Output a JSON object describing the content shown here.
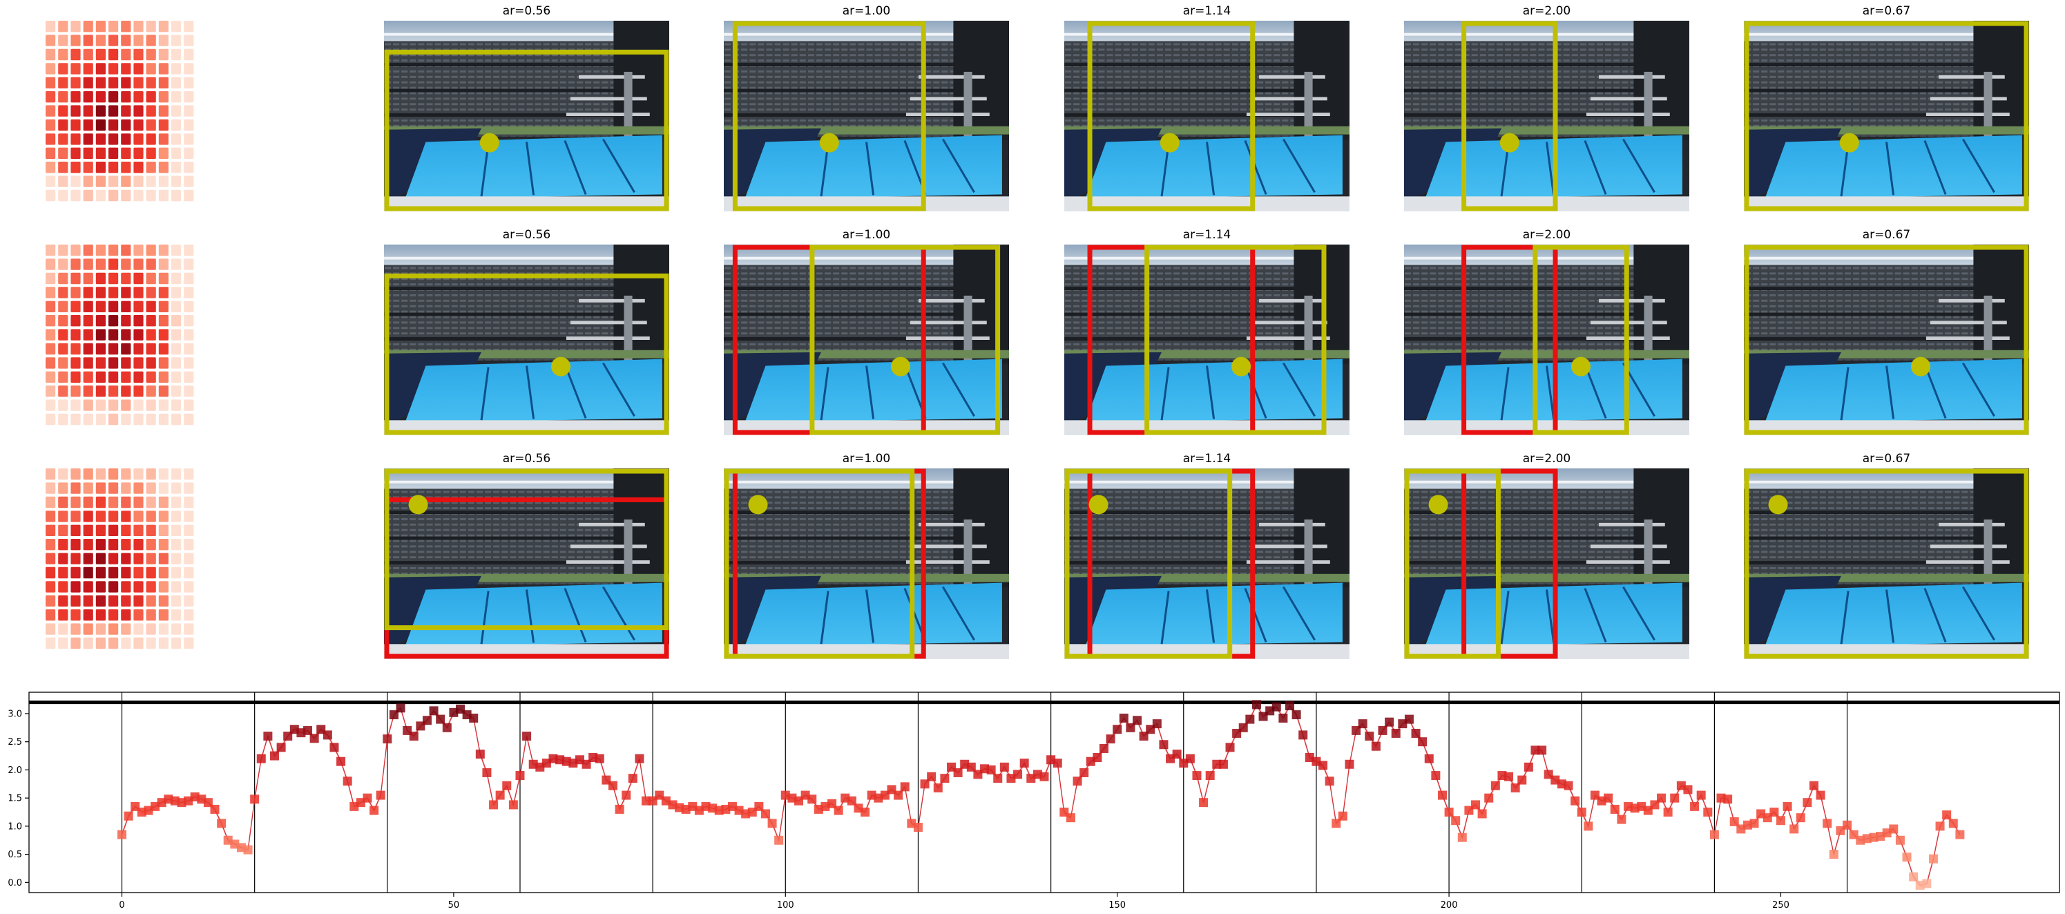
{
  "colors": {
    "box_yellow": "#bfbf00",
    "box_red": "#e81010",
    "dot_yellow": "#bfbf00",
    "line": "#d4343a",
    "ink": "#000000"
  },
  "panel_titles": [
    "ar=0.56",
    "ar=1.00",
    "ar=1.14",
    "ar=2.00",
    "ar=0.67"
  ],
  "image_rows": [
    {
      "heat_shift": 0,
      "panels": [
        {
          "title": "ar=0.56",
          "dot": [
            0.37,
            0.64
          ],
          "yellow": [
            0.0,
            0.15,
            1.0,
            1.0
          ],
          "red": null
        },
        {
          "title": "ar=1.00",
          "dot": [
            0.37,
            0.64
          ],
          "yellow": [
            0.03,
            0.0,
            0.71,
            1.0
          ],
          "red": null
        },
        {
          "title": "ar=1.14",
          "dot": [
            0.37,
            0.64
          ],
          "yellow": [
            0.08,
            0.0,
            0.67,
            1.0
          ],
          "red": null
        },
        {
          "title": "ar=2.00",
          "dot": [
            0.37,
            0.64
          ],
          "yellow": [
            0.2,
            0.0,
            0.54,
            1.0
          ],
          "red": null
        },
        {
          "title": "ar=0.67",
          "dot": [
            0.37,
            0.64
          ],
          "yellow": [
            0.0,
            0.0,
            1.0,
            1.0
          ],
          "red": null
        }
      ]
    },
    {
      "heat_shift": 1,
      "panels": [
        {
          "title": "ar=0.56",
          "dot": [
            0.62,
            0.64
          ],
          "yellow": [
            0.0,
            0.15,
            1.0,
            1.0
          ],
          "red": null
        },
        {
          "title": "ar=1.00",
          "dot": [
            0.62,
            0.64
          ],
          "yellow": [
            0.3,
            0.0,
            0.97,
            1.0
          ],
          "red": [
            0.03,
            0.0,
            0.71,
            1.0
          ]
        },
        {
          "title": "ar=1.14",
          "dot": [
            0.62,
            0.64
          ],
          "yellow": [
            0.28,
            0.0,
            0.92,
            1.0
          ],
          "red": [
            0.08,
            0.0,
            0.67,
            1.0
          ]
        },
        {
          "title": "ar=2.00",
          "dot": [
            0.62,
            0.64
          ],
          "yellow": [
            0.45,
            0.0,
            0.79,
            1.0
          ],
          "red": [
            0.2,
            0.0,
            0.54,
            1.0
          ]
        },
        {
          "title": "ar=0.67",
          "dot": [
            0.62,
            0.64
          ],
          "yellow": [
            0.0,
            0.0,
            1.0,
            1.0
          ],
          "red": null
        }
      ]
    },
    {
      "heat_shift": -1,
      "panels": [
        {
          "title": "ar=0.56",
          "dot": [
            0.12,
            0.19
          ],
          "yellow": [
            0.0,
            0.0,
            1.0,
            0.85
          ],
          "red": [
            0.0,
            0.15,
            1.0,
            1.0
          ]
        },
        {
          "title": "ar=1.00",
          "dot": [
            0.12,
            0.19
          ],
          "yellow": [
            0.0,
            0.0,
            0.67,
            1.0
          ],
          "red": [
            0.03,
            0.0,
            0.71,
            1.0
          ]
        },
        {
          "title": "ar=1.14",
          "dot": [
            0.12,
            0.19
          ],
          "yellow": [
            0.0,
            0.0,
            0.59,
            1.0
          ],
          "red": [
            0.08,
            0.0,
            0.67,
            1.0
          ]
        },
        {
          "title": "ar=2.00",
          "dot": [
            0.12,
            0.19
          ],
          "yellow": [
            0.0,
            0.0,
            0.34,
            1.0
          ],
          "red": [
            0.2,
            0.0,
            0.54,
            1.0
          ]
        },
        {
          "title": "ar=0.67",
          "dot": [
            0.12,
            0.19
          ],
          "yellow": [
            0.0,
            0.0,
            1.0,
            1.0
          ],
          "red": null
        }
      ]
    }
  ],
  "chart_data": {
    "type": "line",
    "title": "",
    "xlabel": "",
    "ylabel": "",
    "xlim": [
      -14,
      292
    ],
    "ylim": [
      -0.18,
      3.38
    ],
    "xticks": [
      0,
      50,
      100,
      150,
      200,
      250
    ],
    "yticks": [
      0.0,
      0.5,
      1.0,
      1.5,
      2.0,
      2.5,
      3.0
    ],
    "ytick_labels": [
      "0.0",
      "0.5",
      "1.0",
      "1.5",
      "2.0",
      "2.5",
      "3.0"
    ],
    "reference_line_y": 3.2,
    "vlines": [
      0,
      20,
      40,
      60,
      80,
      100,
      120,
      140,
      160,
      180,
      200,
      220,
      240,
      260
    ],
    "marker": "square",
    "grid": false,
    "legend": "none",
    "y": [
      0.85,
      1.18,
      1.35,
      1.25,
      1.28,
      1.35,
      1.42,
      1.48,
      1.45,
      1.42,
      1.45,
      1.52,
      1.48,
      1.42,
      1.3,
      1.05,
      0.75,
      0.68,
      0.62,
      0.58,
      1.48,
      2.2,
      2.6,
      2.25,
      2.4,
      2.6,
      2.72,
      2.66,
      2.7,
      2.56,
      2.72,
      2.62,
      2.4,
      2.15,
      1.8,
      1.35,
      1.42,
      1.5,
      1.28,
      1.55,
      2.55,
      2.98,
      3.1,
      2.7,
      2.6,
      2.78,
      2.88,
      3.05,
      2.9,
      2.75,
      3.02,
      3.08,
      2.98,
      2.92,
      2.28,
      1.95,
      1.38,
      1.55,
      1.72,
      1.38,
      1.9,
      2.6,
      2.1,
      2.05,
      2.12,
      2.2,
      2.18,
      2.15,
      2.12,
      2.18,
      2.1,
      2.22,
      2.2,
      1.82,
      1.72,
      1.3,
      1.55,
      1.85,
      2.2,
      1.45,
      1.45,
      1.55,
      1.45,
      1.38,
      1.33,
      1.3,
      1.35,
      1.28,
      1.35,
      1.32,
      1.28,
      1.3,
      1.35,
      1.28,
      1.22,
      1.25,
      1.35,
      1.22,
      1.05,
      0.75,
      1.55,
      1.5,
      1.45,
      1.55,
      1.48,
      1.3,
      1.35,
      1.4,
      1.28,
      1.5,
      1.45,
      1.32,
      1.25,
      1.55,
      1.5,
      1.55,
      1.65,
      1.55,
      1.7,
      1.05,
      0.98,
      1.75,
      1.88,
      1.68,
      1.85,
      2.05,
      1.95,
      2.1,
      2.05,
      1.92,
      2.02,
      2.0,
      1.85,
      2.05,
      1.85,
      1.92,
      2.12,
      1.85,
      1.92,
      1.88,
      2.18,
      2.12,
      1.25,
      1.15,
      1.8,
      1.95,
      2.15,
      2.22,
      2.38,
      2.55,
      2.72,
      2.92,
      2.75,
      2.88,
      2.6,
      2.72,
      2.82,
      2.45,
      2.2,
      2.28,
      2.12,
      2.2,
      1.9,
      1.42,
      1.9,
      2.1,
      2.1,
      2.4,
      2.65,
      2.75,
      2.9,
      3.16,
      2.95,
      3.05,
      3.12,
      2.92,
      3.14,
      2.98,
      2.62,
      2.22,
      2.15,
      2.08,
      1.8,
      1.05,
      1.18,
      2.1,
      2.7,
      2.82,
      2.6,
      2.42,
      2.7,
      2.85,
      2.65,
      2.82,
      2.9,
      2.65,
      2.5,
      2.2,
      1.9,
      1.55,
      1.25,
      1.1,
      0.8,
      1.28,
      1.38,
      1.22,
      1.5,
      1.72,
      1.9,
      1.88,
      1.68,
      1.82,
      2.05,
      2.35,
      2.35,
      1.92,
      1.82,
      1.75,
      1.72,
      1.45,
      1.25,
      1.0,
      1.55,
      1.45,
      1.5,
      1.3,
      1.12,
      1.35,
      1.32,
      1.35,
      1.28,
      1.38,
      1.5,
      1.25,
      1.5,
      1.72,
      1.65,
      1.35,
      1.55,
      1.25,
      0.85,
      1.5,
      1.48,
      1.08,
      0.95,
      1.02,
      1.05,
      1.22,
      1.15,
      1.25,
      1.1,
      1.35,
      0.95,
      1.15,
      1.42,
      1.72,
      1.55,
      1.05,
      0.5,
      0.92,
      1.02,
      0.85,
      0.75,
      0.78,
      0.8,
      0.82,
      0.88,
      0.95,
      0.75,
      0.45,
      0.1,
      -0.05,
      -0.02,
      0.42,
      1.0,
      1.2,
      1.05,
      0.85
    ]
  }
}
